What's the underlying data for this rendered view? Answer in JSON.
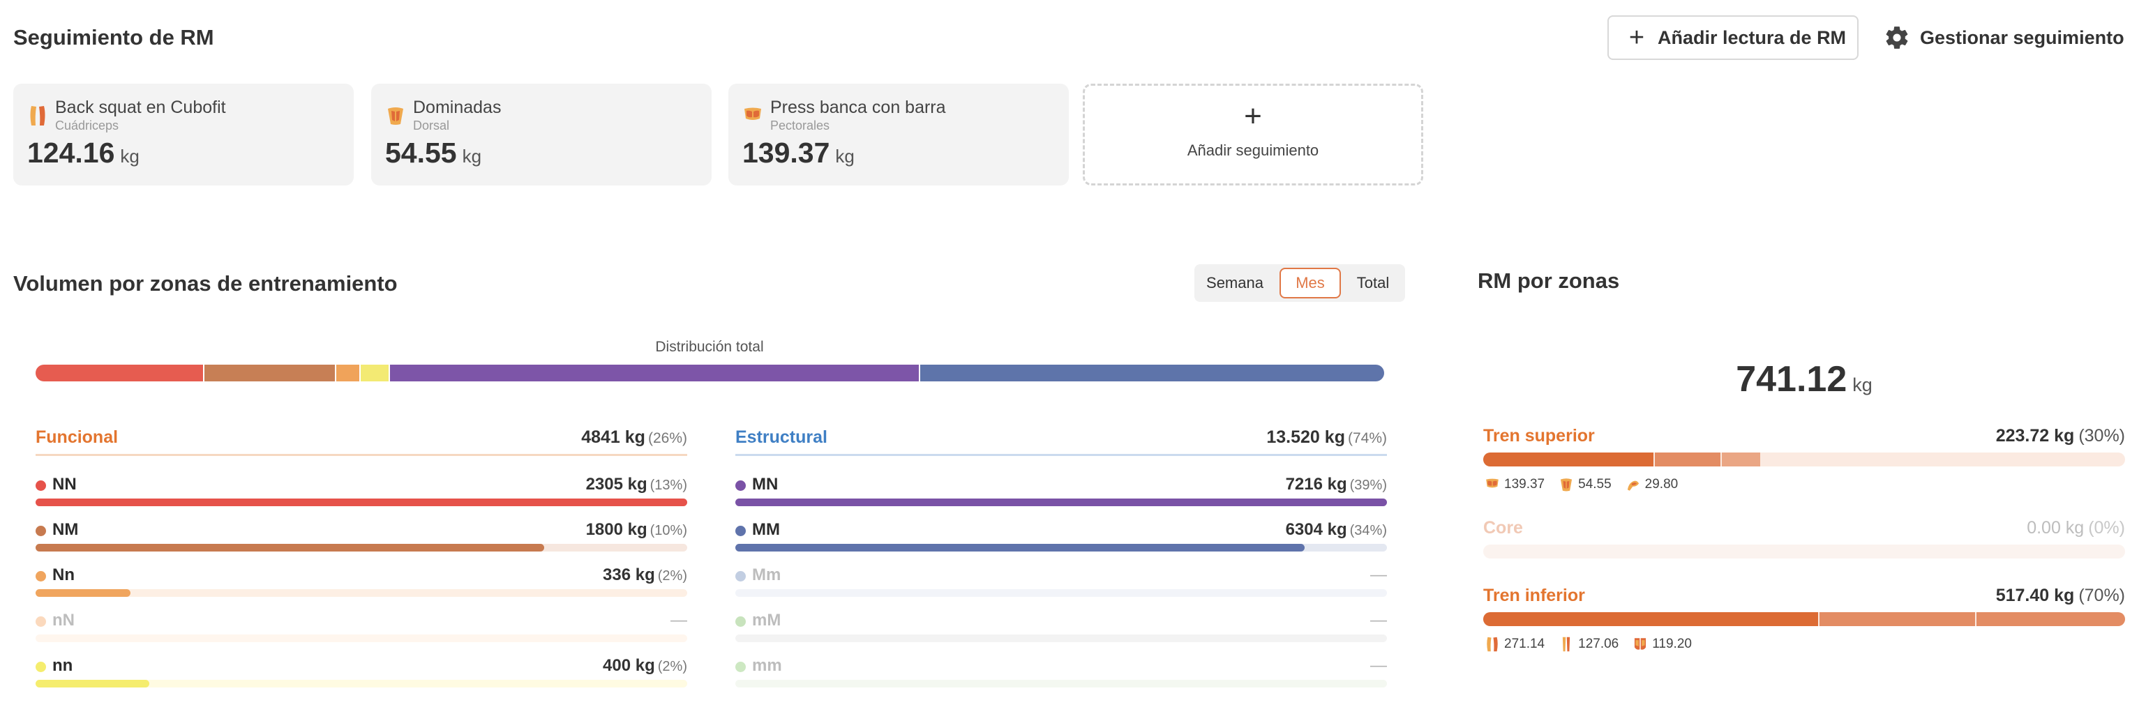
{
  "header": {
    "title": "Seguimiento de RM",
    "add_button": "Añadir lectura de RM",
    "manage_button": "Gestionar seguimiento"
  },
  "cards": [
    {
      "name": "Back squat en Cubofit",
      "muscle": "Cuádriceps",
      "value": "124.16",
      "unit": "kg",
      "icon": "quadriceps-icon"
    },
    {
      "name": "Dominadas",
      "muscle": "Dorsal",
      "value": "54.55",
      "unit": "kg",
      "icon": "dorsal-icon"
    },
    {
      "name": "Press banca con barra",
      "muscle": "Pectorales",
      "value": "139.37",
      "unit": "kg",
      "icon": "pectorals-icon"
    }
  ],
  "add_card_label": "Añadir seguimiento",
  "volume": {
    "title": "Volumen por zonas de entrenamiento",
    "periods": [
      "Semana",
      "Mes",
      "Total"
    ],
    "selected_period": "Mes",
    "distribution_label": "Distribución total",
    "distribution": [
      {
        "key": "NN",
        "fraction": 0.125,
        "color": "#e65c50"
      },
      {
        "key": "NM",
        "fraction": 0.098,
        "color": "#c77f55"
      },
      {
        "key": "Nn",
        "fraction": 0.018,
        "color": "#f0a35a"
      },
      {
        "key": "nn",
        "fraction": 0.022,
        "color": "#f3ea73"
      },
      {
        "key": "MN",
        "fraction": 0.393,
        "color": "#7d55a8"
      },
      {
        "key": "MM",
        "fraction": 0.344,
        "color": "#5e74aa"
      }
    ],
    "funcional": {
      "title": "Funcional",
      "value": "4841 kg",
      "pct": "(26%)",
      "color": "#e3752f",
      "rows": [
        {
          "label": "NN",
          "value": "2305 kg",
          "pct": "(13%)",
          "fill": 1.0,
          "color": "#e6524a",
          "track": "#fbe3de"
        },
        {
          "label": "NM",
          "value": "1800 kg",
          "pct": "(10%)",
          "fill": 0.78,
          "color": "#c77a4f",
          "track": "#f6e7df"
        },
        {
          "label": "Nn",
          "value": "336 kg",
          "pct": "(2%)",
          "fill": 0.146,
          "color": "#f0a55e",
          "track": "#fdefe4"
        },
        {
          "label": "nN",
          "value": "—",
          "pct": "",
          "fill": 0,
          "color": "#fbd9bd",
          "track": "#fff6ee",
          "dim": true
        },
        {
          "label": "nn",
          "value": "400 kg",
          "pct": "(2%)",
          "fill": 0.174,
          "color": "#f5ed6e",
          "track": "#fffbe2"
        }
      ]
    },
    "estructural": {
      "title": "Estructural",
      "value": "13.520 kg",
      "pct": "(74%)",
      "color": "#3f7fc4",
      "rows": [
        {
          "label": "MN",
          "value": "7216 kg",
          "pct": "(39%)",
          "fill": 1.0,
          "color": "#7a52a6",
          "track": "#ece4f5"
        },
        {
          "label": "MM",
          "value": "6304 kg",
          "pct": "(34%)",
          "fill": 0.874,
          "color": "#5f73ab",
          "track": "#e4e8f1"
        },
        {
          "label": "Mm",
          "value": "—",
          "pct": "",
          "fill": 0,
          "color": "#c2cee2",
          "track": "#f2f4f9",
          "dim": true
        },
        {
          "label": "mM",
          "value": "—",
          "pct": "",
          "fill": 0,
          "color": "#c8e3bd",
          "track": "#f3f3f3",
          "dim": true
        },
        {
          "label": "mm",
          "value": "—",
          "pct": "",
          "fill": 0,
          "color": "#cde8c2",
          "track": "#f4f8f1",
          "dim": true
        }
      ]
    }
  },
  "rm_zones": {
    "title": "RM por zonas",
    "total": "741.12",
    "unit": "kg",
    "zones": [
      {
        "name": "Tren superior",
        "value": "223.72 kg",
        "pct": "(30%)",
        "fill": 0.432,
        "segments": [
          {
            "fraction": 0.62,
            "color": "#dc6b34"
          },
          {
            "fraction": 0.24,
            "color": "#e38c63"
          },
          {
            "fraction": 0.14,
            "color": "#eaa684"
          }
        ],
        "chips": [
          {
            "icon": "pectorals-icon",
            "value": "139.37"
          },
          {
            "icon": "dorsal-icon",
            "value": "54.55"
          },
          {
            "icon": "biceps-icon",
            "value": "29.80"
          }
        ]
      },
      {
        "name": "Core",
        "value": "0.00 kg",
        "pct": "(0%)",
        "fill": 0,
        "segments": [],
        "chips": [],
        "dim": true
      },
      {
        "name": "Tren inferior",
        "value": "517.40 kg",
        "pct": "(70%)",
        "fill": 1.0,
        "segments": [
          {
            "fraction": 0.524,
            "color": "#dc6b34"
          },
          {
            "fraction": 0.245,
            "color": "#e38c63"
          },
          {
            "fraction": 0.231,
            "color": "#e38c63"
          }
        ],
        "chips": [
          {
            "icon": "quadriceps-icon",
            "value": "271.14"
          },
          {
            "icon": "hamstrings-icon",
            "value": "127.06"
          },
          {
            "icon": "glutes-icon",
            "value": "119.20"
          }
        ]
      }
    ]
  }
}
